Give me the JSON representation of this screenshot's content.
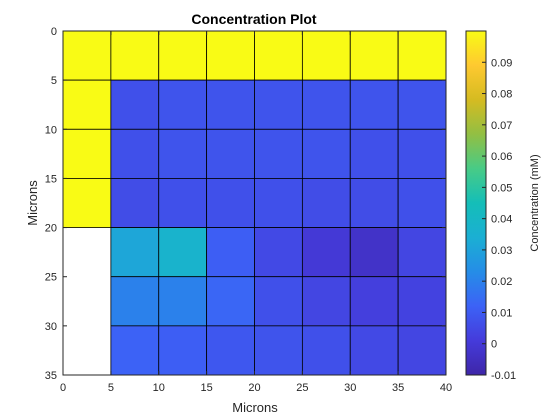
{
  "chart_data": {
    "type": "heatmap",
    "title": "Concentration Plot",
    "xlabel": "Microns",
    "ylabel": "Microns",
    "xlim": [
      0,
      40
    ],
    "ylim": [
      0,
      35
    ],
    "y_reversed": true,
    "x_ticks": [
      "0",
      "5",
      "10",
      "15",
      "20",
      "25",
      "30",
      "35",
      "40"
    ],
    "y_ticks": [
      "0",
      "5",
      "10",
      "15",
      "20",
      "25",
      "30",
      "35"
    ],
    "x_edges": [
      0,
      5,
      10,
      15,
      20,
      25,
      30,
      35,
      40
    ],
    "y_edges": [
      0,
      5,
      10,
      15,
      20,
      25,
      30,
      35
    ],
    "values": [
      [
        0.1,
        0.1,
        0.1,
        0.1,
        0.1,
        0.1,
        0.1,
        0.1
      ],
      [
        0.1,
        0.007,
        0.008,
        0.008,
        0.008,
        0.008,
        0.008,
        0.008
      ],
      [
        0.1,
        0.007,
        0.008,
        0.008,
        0.008,
        0.008,
        0.007,
        0.007
      ],
      [
        0.1,
        0.006,
        0.007,
        0.007,
        0.007,
        0.006,
        0.006,
        0.007
      ],
      [
        null,
        0.031,
        0.037,
        0.011,
        0.005,
        0.0,
        -0.003,
        0.004
      ],
      [
        null,
        0.02,
        0.02,
        0.013,
        0.007,
        0.004,
        0.002,
        0.003
      ],
      [
        null,
        0.012,
        0.011,
        0.009,
        0.008,
        0.007,
        0.005,
        0.004
      ]
    ],
    "colorbar": {
      "label": "Concentration (mM)",
      "range": [
        -0.01,
        0.1
      ],
      "ticks": [
        "-0.01",
        "0",
        "0.01",
        "0.02",
        "0.03",
        "0.04",
        "0.05",
        "0.06",
        "0.07",
        "0.08",
        "0.09"
      ],
      "colormap": "parula"
    },
    "grid": false
  }
}
